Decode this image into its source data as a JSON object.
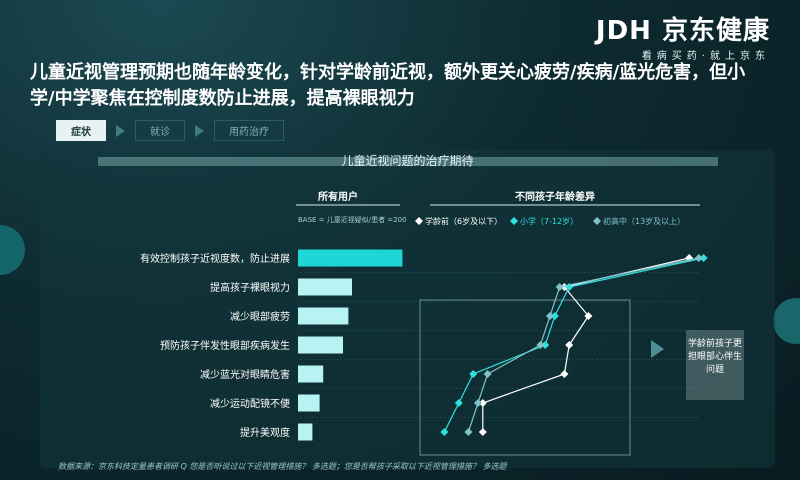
{
  "logo": {
    "brand": "JDH",
    "name": "京东健康",
    "tagline": "看病买药·就上京东"
  },
  "headline": "儿童近视管理预期也随年龄变化，针对学龄前近视，额外更关心疲劳/疾病/蓝光危害，但小学/中学聚焦在控制度数防止进展，提高裸眼视力",
  "steps": [
    {
      "label": "症状",
      "active": true
    },
    {
      "label": "就诊",
      "active": false
    },
    {
      "label": "用药治疗",
      "active": false
    }
  ],
  "panel_title": "儿童近视问题的治疗期待",
  "side_note": "学龄前孩子更担眼部心伴生问题",
  "footer": "数据来源：京东科技定量患者调研 Q 您是否听说过以下近视管理措施？ 多选题；您是否帮孩子采取以下近视管理措施？ 多选题",
  "colors": {
    "bar": "#1ed6d6",
    "bar_light": "#b8f3f3",
    "line_all": "#ffffff",
    "line_primary": "#2fe0e0",
    "line_middle": "#7fc3c8"
  },
  "chart_data": {
    "type": "bar",
    "left_header": "所有用户",
    "right_header": "不同孩子年龄差异",
    "base_note": "BASE = 儿童近视疑似/患者 =200",
    "categories": [
      "有效控制孩子近视度数，防止进展",
      "提高孩子裸眼视力",
      "减少眼部疲劳",
      "预防孩子伴发性眼部疾病发生",
      "减少蓝光对眼睛危害",
      "减少运动配镜不便",
      "提升美观度"
    ],
    "values": [
      0.58,
      0.3,
      0.28,
      0.25,
      0.14,
      0.12,
      0.08
    ],
    "series": [
      {
        "name": "学龄前（6岁及以下）",
        "values": [
          0.64,
          0.38,
          0.43,
          0.39,
          0.38,
          0.21,
          0.21
        ]
      },
      {
        "name": "小学（7-12岁）",
        "values": [
          0.67,
          0.39,
          0.36,
          0.34,
          0.19,
          0.16,
          0.13
        ]
      },
      {
        "name": "初高中（13岁及以上）",
        "values": [
          0.66,
          0.37,
          0.35,
          0.33,
          0.22,
          0.2,
          0.18
        ]
      }
    ]
  }
}
